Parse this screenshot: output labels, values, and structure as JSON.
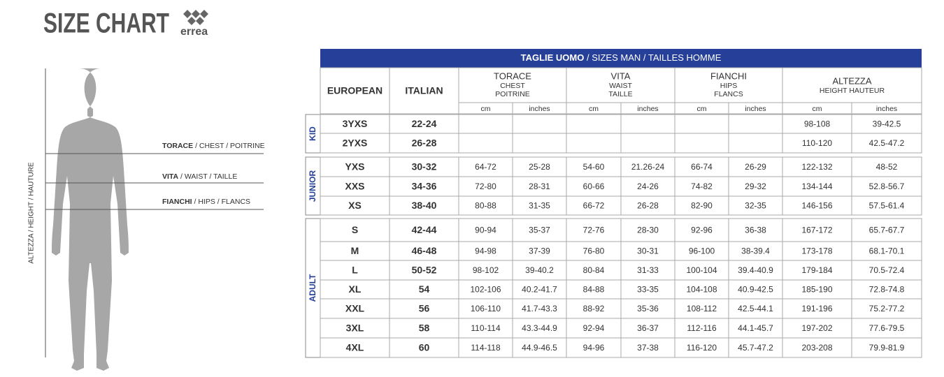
{
  "header": {
    "title": "SIZE CHART",
    "brand": "errea"
  },
  "figure": {
    "height_label": "ALTEZZA / HEIGHT / HAUTURE",
    "measures": [
      {
        "bold": "TORACE",
        "rest": " / CHEST / POITRINE"
      },
      {
        "bold": "VITA",
        "rest": " / WAIST / TAILLE"
      },
      {
        "bold": "FIANCHI",
        "rest": " / HIPS / FLANCS"
      }
    ]
  },
  "table": {
    "title_bold": "TAGLIE UOMO",
    "title_rest": " / SIZES MAN / TAILLES HOMME",
    "columns": [
      "EUROPEAN",
      "ITALIAN"
    ],
    "measures": [
      {
        "name": "TORACE",
        "sub": [
          "CHEST",
          "POITRINE"
        ]
      },
      {
        "name": "VITA",
        "sub": [
          "WAIST",
          "TAILLE"
        ]
      },
      {
        "name": "FIANCHI",
        "sub": [
          "HIPS",
          "FLANCS"
        ]
      },
      {
        "name": "ALTEZZA",
        "sub": [
          "HEIGHT HAUTEUR"
        ]
      }
    ],
    "units": [
      "cm",
      "inches"
    ],
    "groups": [
      {
        "label": "KID",
        "rows": [
          [
            "3YXS",
            "22-24",
            null,
            null,
            null,
            null,
            null,
            null,
            "98-108",
            "39-42.5"
          ],
          [
            "2YXS",
            "26-28",
            null,
            null,
            null,
            null,
            null,
            null,
            "110-120",
            "42.5-47.2"
          ]
        ]
      },
      {
        "label": "JUNIOR",
        "rows": [
          [
            "YXS",
            "30-32",
            "64-72",
            "25-28",
            "54-60",
            "21.26-24",
            "66-74",
            "26-29",
            "122-132",
            "48-52"
          ],
          [
            "XXS",
            "34-36",
            "72-80",
            "28-31",
            "60-66",
            "24-26",
            "74-82",
            "29-32",
            "134-144",
            "52.8-56.7"
          ],
          [
            "XS",
            "38-40",
            "80-88",
            "31-35",
            "66-72",
            "26-28",
            "82-90",
            "32-35",
            "146-156",
            "57.5-61.4"
          ]
        ]
      },
      {
        "label": "ADULT",
        "rows": [
          [
            "S",
            "42-44",
            "90-94",
            "35-37",
            "72-76",
            "28-30",
            "92-96",
            "36-38",
            "167-172",
            "65.7-67.7"
          ],
          [
            "M",
            "46-48",
            "94-98",
            "37-39",
            "76-80",
            "30-31",
            "96-100",
            "38-39.4",
            "173-178",
            "68.1-70.1"
          ],
          [
            "L",
            "50-52",
            "98-102",
            "39-40.2",
            "80-84",
            "31-33",
            "100-104",
            "39.4-40.9",
            "179-184",
            "70.5-72.4"
          ],
          [
            "XL",
            "54",
            "102-106",
            "40.2-41.7",
            "84-88",
            "33-35",
            "104-108",
            "40.9-42.5",
            "185-190",
            "72.8-74.8"
          ],
          [
            "XXL",
            "56",
            "106-110",
            "41.7-43.3",
            "88-92",
            "35-36",
            "108-112",
            "42.5-44.1",
            "191-196",
            "75.2-77.2"
          ],
          [
            "3XL",
            "58",
            "110-114",
            "43.3-44.9",
            "92-94",
            "36-37",
            "112-116",
            "44.1-45.7",
            "197-202",
            "77.6-79.5"
          ],
          [
            "4XL",
            "60",
            "114-118",
            "44.9-46.5",
            "94-96",
            "37-38",
            "116-120",
            "45.7-47.2",
            "203-208",
            "79.9-81.9"
          ]
        ]
      }
    ]
  }
}
